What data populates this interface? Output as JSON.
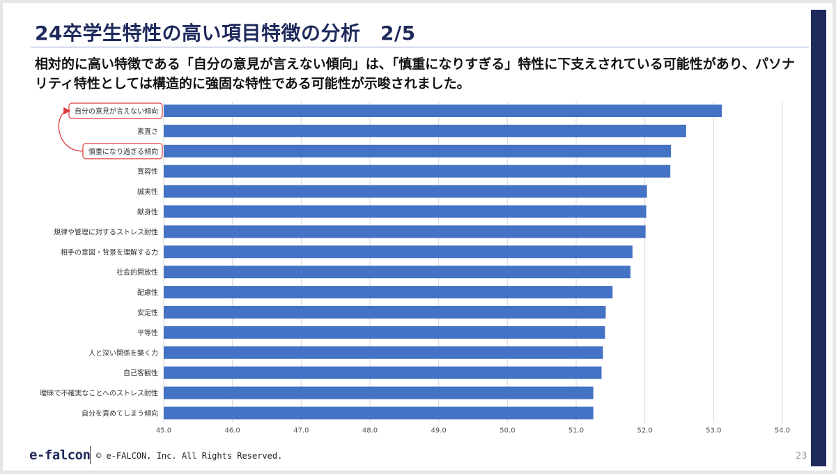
{
  "slide": {
    "title": "24卒学生特性の高い項目特徴の分析　2/5",
    "subtitle": "相対的に高い特徴である「自分の意見が言えない傾向」は、「慎重になりすぎる」特性に下支えされている可能性があり、パソナリティ特性としては構造的に強固な特性である可能性が示唆されました。",
    "footer_logo": "e-falcon",
    "copyright": "© e-FALCON, Inc. All Rights Reserved.",
    "page_number": "23"
  },
  "colors": {
    "bar": "#4472c4",
    "highlight": "#e03a3a",
    "navy": "#1f2a5c",
    "grid": "#d9d9d9"
  },
  "chart_data": {
    "type": "bar",
    "orientation": "horizontal",
    "categories": [
      "自分の意見が言えない傾向",
      "素直さ",
      "慎重になり過ぎる傾向",
      "寛容性",
      "誠実性",
      "献身性",
      "規律や管理に対するストレス耐性",
      "相手の意図・背景を理解する力",
      "社会的開放性",
      "配慮性",
      "安定性",
      "平等性",
      "人と深い関係を築く力",
      "自己客観性",
      "曖昧で不確実なことへのストレス耐性",
      "自分を責めてしまう傾向"
    ],
    "values": [
      53.12,
      52.6,
      52.38,
      52.37,
      52.03,
      52.02,
      52.01,
      51.82,
      51.79,
      51.53,
      51.43,
      51.42,
      51.39,
      51.37,
      51.25,
      51.25
    ],
    "x_ticks": [
      "45.0",
      "46.0",
      "47.0",
      "48.0",
      "49.0",
      "50.0",
      "51.0",
      "52.0",
      "53.0",
      "54.0"
    ],
    "xlim": [
      45,
      54
    ],
    "grid": true,
    "highlighted": [
      "自分の意見が言えない傾向",
      "慎重になり過ぎる傾向"
    ],
    "annotation": "arrow from 慎重になり過ぎる傾向 to 自分の意見が言えない傾向"
  }
}
